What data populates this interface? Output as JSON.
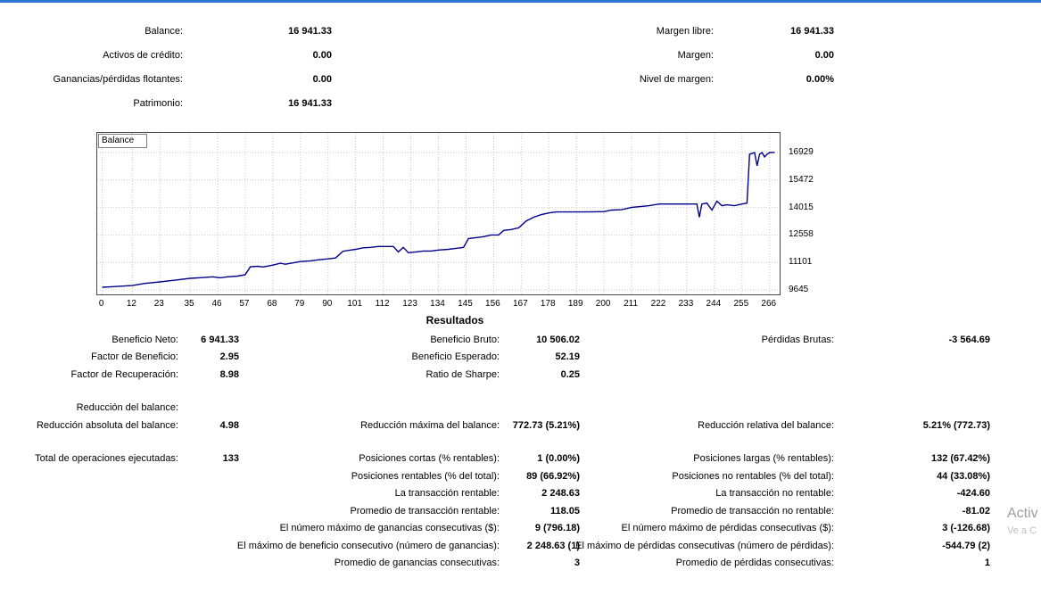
{
  "colors": {
    "top_border": "#2e75d4",
    "line": "#00008b",
    "grid": "#c6c6c6",
    "watermark": "#9d9d9d"
  },
  "account": {
    "left": [
      {
        "label": "Balance:",
        "value": "16 941.33"
      },
      {
        "label": "Activos de crédito:",
        "value": "0.00"
      },
      {
        "label": "Ganancias/pérdidas flotantes:",
        "value": "0.00"
      },
      {
        "label": "Patrimonio:",
        "value": "16 941.33"
      }
    ],
    "right": [
      {
        "label": "Margen libre:",
        "value": "16 941.33"
      },
      {
        "label": "Margen:",
        "value": "0.00"
      },
      {
        "label": "Nivel de margen:",
        "value": "0.00%"
      }
    ]
  },
  "chart_data": {
    "type": "line",
    "title": "Balance",
    "legend": "Balance",
    "line_color": "#00008b",
    "grid": true,
    "xlim": [
      -2,
      270
    ],
    "ylim": [
      9410,
      17970
    ],
    "xticks": [
      0,
      12,
      23,
      35,
      46,
      57,
      68,
      79,
      90,
      101,
      112,
      123,
      134,
      145,
      156,
      167,
      178,
      189,
      200,
      211,
      222,
      233,
      244,
      255,
      266
    ],
    "yticks": [
      9645,
      11101,
      12558,
      14015,
      15472,
      16929
    ],
    "points": [
      [
        0,
        9790
      ],
      [
        6,
        9830
      ],
      [
        12,
        9880
      ],
      [
        17,
        9990
      ],
      [
        23,
        10070
      ],
      [
        29,
        10160
      ],
      [
        35,
        10260
      ],
      [
        40,
        10300
      ],
      [
        44,
        10340
      ],
      [
        47,
        10290
      ],
      [
        50,
        10340
      ],
      [
        54,
        10380
      ],
      [
        57,
        10450
      ],
      [
        59,
        10870
      ],
      [
        62,
        10900
      ],
      [
        64,
        10860
      ],
      [
        68,
        10960
      ],
      [
        71,
        11060
      ],
      [
        73,
        11010
      ],
      [
        76,
        11080
      ],
      [
        79,
        11150
      ],
      [
        83,
        11190
      ],
      [
        86,
        11240
      ],
      [
        90,
        11290
      ],
      [
        93,
        11340
      ],
      [
        96,
        11700
      ],
      [
        99,
        11760
      ],
      [
        101,
        11800
      ],
      [
        104,
        11880
      ],
      [
        107,
        11900
      ],
      [
        110,
        11950
      ],
      [
        114,
        11950
      ],
      [
        116,
        11950
      ],
      [
        118,
        11660
      ],
      [
        120,
        11900
      ],
      [
        122,
        11620
      ],
      [
        125,
        11660
      ],
      [
        128,
        11710
      ],
      [
        131,
        11710
      ],
      [
        134,
        11760
      ],
      [
        138,
        11800
      ],
      [
        141,
        11850
      ],
      [
        144,
        11900
      ],
      [
        146,
        12370
      ],
      [
        149,
        12420
      ],
      [
        152,
        12470
      ],
      [
        155,
        12560
      ],
      [
        158,
        12560
      ],
      [
        160,
        12800
      ],
      [
        163,
        12850
      ],
      [
        166,
        12940
      ],
      [
        169,
        13300
      ],
      [
        172,
        13500
      ],
      [
        175,
        13640
      ],
      [
        178,
        13730
      ],
      [
        181,
        13780
      ],
      [
        186,
        13780
      ],
      [
        191,
        13780
      ],
      [
        196,
        13790
      ],
      [
        200,
        13800
      ],
      [
        203,
        13880
      ],
      [
        207,
        13900
      ],
      [
        211,
        14020
      ],
      [
        214,
        14060
      ],
      [
        218,
        14110
      ],
      [
        222,
        14200
      ],
      [
        226,
        14200
      ],
      [
        230,
        14200
      ],
      [
        234,
        14200
      ],
      [
        237,
        14200
      ],
      [
        238,
        13500
      ],
      [
        239,
        14200
      ],
      [
        241,
        14250
      ],
      [
        243,
        13880
      ],
      [
        245,
        14350
      ],
      [
        247,
        14110
      ],
      [
        249,
        14160
      ],
      [
        252,
        14110
      ],
      [
        255,
        14200
      ],
      [
        257,
        14250
      ],
      [
        258,
        16840
      ],
      [
        260,
        16930
      ],
      [
        261,
        16230
      ],
      [
        262,
        16840
      ],
      [
        263,
        16930
      ],
      [
        264,
        16700
      ],
      [
        265,
        16840
      ],
      [
        266,
        16930
      ],
      [
        268,
        16941
      ]
    ]
  },
  "results": {
    "title": "Resultados",
    "sections": [
      {
        "rows": [
          [
            "Beneficio Neto:",
            "6 941.33",
            "Beneficio Bruto:",
            "10 506.02",
            "Pérdidas Brutas:",
            "-3 564.69"
          ],
          [
            "Factor de Beneficio:",
            "2.95",
            "Beneficio Esperado:",
            "52.19",
            "",
            ""
          ],
          [
            "Factor de Recuperación:",
            "8.98",
            "Ratio de Sharpe:",
            "0.25",
            "",
            ""
          ]
        ]
      },
      {
        "rows": [
          [
            "Reducción del balance:",
            "",
            "",
            "",
            "",
            ""
          ],
          [
            "Reducción absoluta del balance:",
            "4.98",
            "Reducción máxima del balance:",
            "772.73 (5.21%)",
            "Reducción relativa del balance:",
            "5.21% (772.73)"
          ]
        ]
      },
      {
        "rows": [
          [
            "Total de operaciones ejecutadas:",
            "133",
            "Posiciones cortas (% rentables):",
            "1 (0.00%)",
            "Posiciones largas (% rentables):",
            "132 (67.42%)"
          ],
          [
            "",
            "",
            "Posiciones rentables (% del total):",
            "89 (66.92%)",
            "Posiciones no rentables (% del total):",
            "44 (33.08%)"
          ],
          [
            "",
            "",
            "La transacción rentable:",
            "2 248.63",
            "La transacción no rentable:",
            "-424.60"
          ],
          [
            "",
            "",
            "Promedio de transacción rentable:",
            "118.05",
            "Promedio de transacción no rentable:",
            "-81.02"
          ],
          [
            "",
            "",
            "El número máximo de ganancias consecutivas ($):",
            "9 (796.18)",
            "El número máximo de pérdidas consecutivas ($):",
            "3 (-126.68)"
          ],
          [
            "",
            "",
            "El máximo de beneficio consecutivo (número de ganancias):",
            "2 248.63 (1)",
            "El máximo de pérdidas consecutivas (número de pérdidas):",
            "-544.79 (2)"
          ],
          [
            "",
            "",
            "Promedio de ganancias consecutivas:",
            "3",
            "Promedio de pérdidas consecutivas:",
            "1"
          ]
        ]
      }
    ]
  },
  "activation": {
    "line1": "Activ",
    "line2": "Ve a C"
  }
}
